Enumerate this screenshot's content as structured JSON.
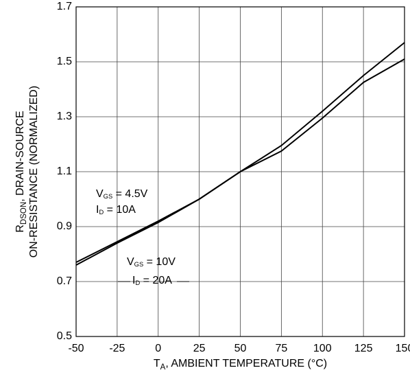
{
  "chart_data": {
    "type": "line",
    "x": [
      -50,
      -25,
      0,
      25,
      50,
      75,
      100,
      125,
      150
    ],
    "series": [
      {
        "color": "#000000",
        "values": [
          0.77,
          0.845,
          0.92,
          1.0,
          1.1,
          1.195,
          1.32,
          1.45,
          1.57
        ]
      },
      {
        "color": "#000000",
        "values": [
          0.76,
          0.84,
          0.915,
          1.0,
          1.1,
          1.175,
          1.295,
          1.425,
          1.51
        ]
      }
    ],
    "xlim": [
      -50,
      150
    ],
    "xticks": [
      -50,
      -25,
      0,
      25,
      50,
      75,
      100,
      125,
      150
    ],
    "ylim": [
      0.5,
      1.7
    ],
    "yticks": [
      0.5,
      0.7,
      0.9,
      1.1,
      1.3,
      1.5,
      1.7
    ],
    "grid": true,
    "xlabel": [
      "T",
      "A",
      ", AMBIENT TEMPERATURE (°C)"
    ],
    "ylabel": [
      [
        "R",
        "DSON",
        ", DRAIN-SOURCE"
      ],
      [
        "ON-RESISTANCE (NORMALIZED)"
      ]
    ],
    "annotations": [
      [
        [
          "V",
          "GS",
          " = 4.5V"
        ],
        [
          "I",
          "D",
          " = 10A"
        ]
      ],
      [
        [
          "V",
          "GS",
          " = 10V"
        ],
        [
          "I",
          "D",
          " = 20A"
        ]
      ]
    ]
  }
}
